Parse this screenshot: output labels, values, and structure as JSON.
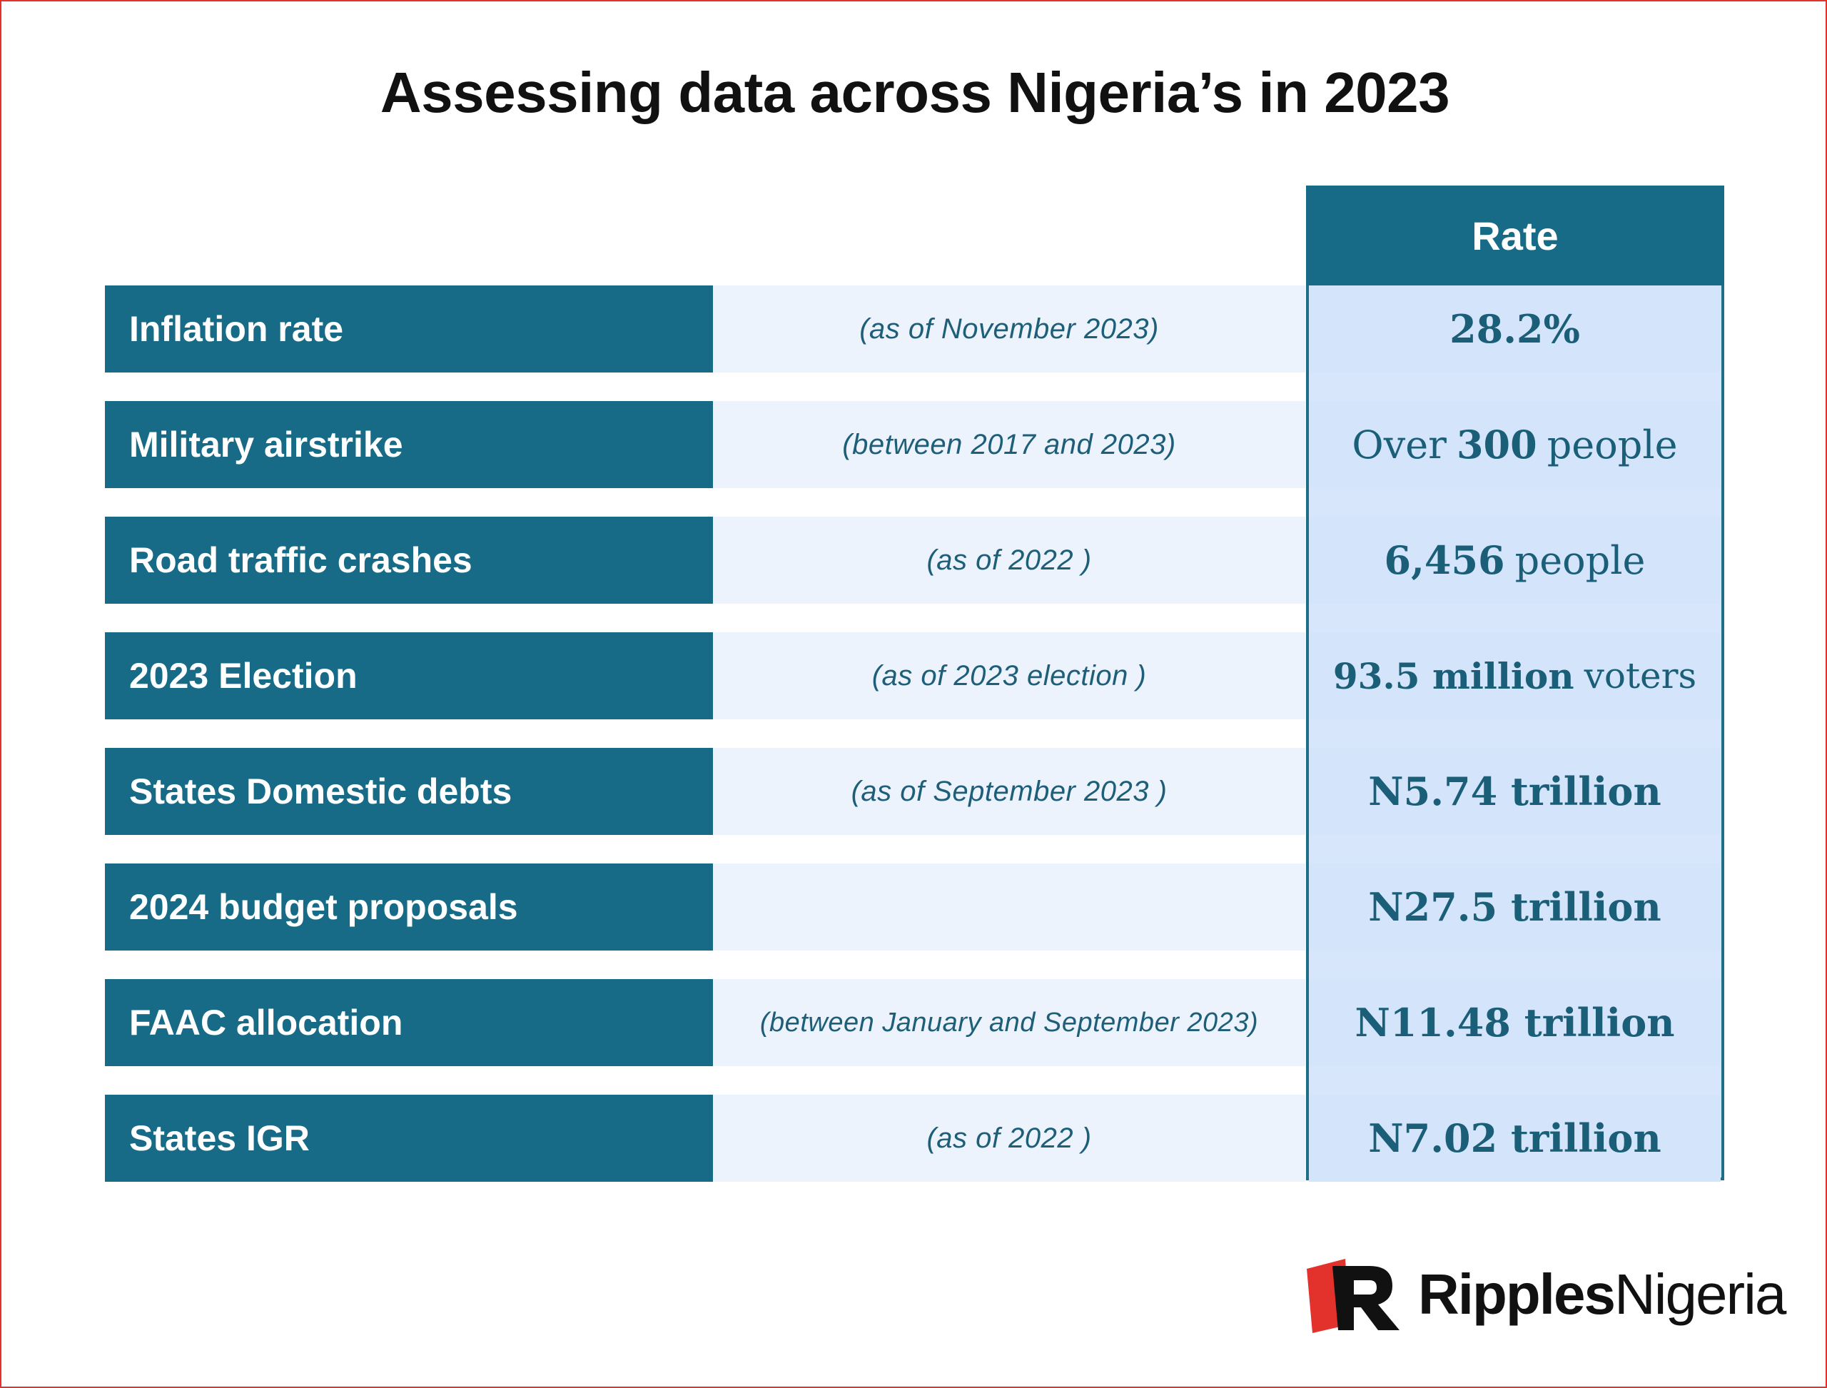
{
  "title": "Assessing data across Nigeria’s in 2023",
  "table": {
    "rate_header": "Rate",
    "rows": [
      {
        "label": "Inflation rate",
        "note": "(as of November 2023)",
        "value_strong": "28.2%",
        "value_rest": ""
      },
      {
        "label": "Military airstrike",
        "note": "(between 2017 and 2023)",
        "value_pre": "Over",
        "value_strong": "300",
        "value_rest": "people"
      },
      {
        "label": "Road traffic crashes",
        "note": "(as of 2022 )",
        "value_strong": "6,456",
        "value_rest": "people"
      },
      {
        "label": "2023 Election",
        "note": "(as of 2023 election )",
        "value_strong": "93.5 million",
        "value_rest": "voters"
      },
      {
        "label": "States Domestic debts",
        "note": "(as of September 2023 )",
        "value_strong": "N5.74 trillion",
        "value_rest": ""
      },
      {
        "label": "2024 budget proposals",
        "note": "",
        "value_strong": "N27.5 trillion",
        "value_rest": ""
      },
      {
        "label": "FAAC allocation",
        "note": "(between January and September 2023)",
        "value_strong": "N11.48 trillion",
        "value_rest": ""
      },
      {
        "label": "States IGR",
        "note": "(as of 2022 )",
        "value_strong": "N7.02 trillion",
        "value_rest": ""
      }
    ]
  },
  "logo": {
    "part1": "Ripples",
    "part2": "Nigeria",
    "icon": "ripples-logo-mark"
  },
  "colors": {
    "header": "#186b86",
    "note_bg": "#edf3fc",
    "value_bg": "#d3e4fb",
    "border": "#e3312b",
    "logo_red": "#e3312b"
  }
}
